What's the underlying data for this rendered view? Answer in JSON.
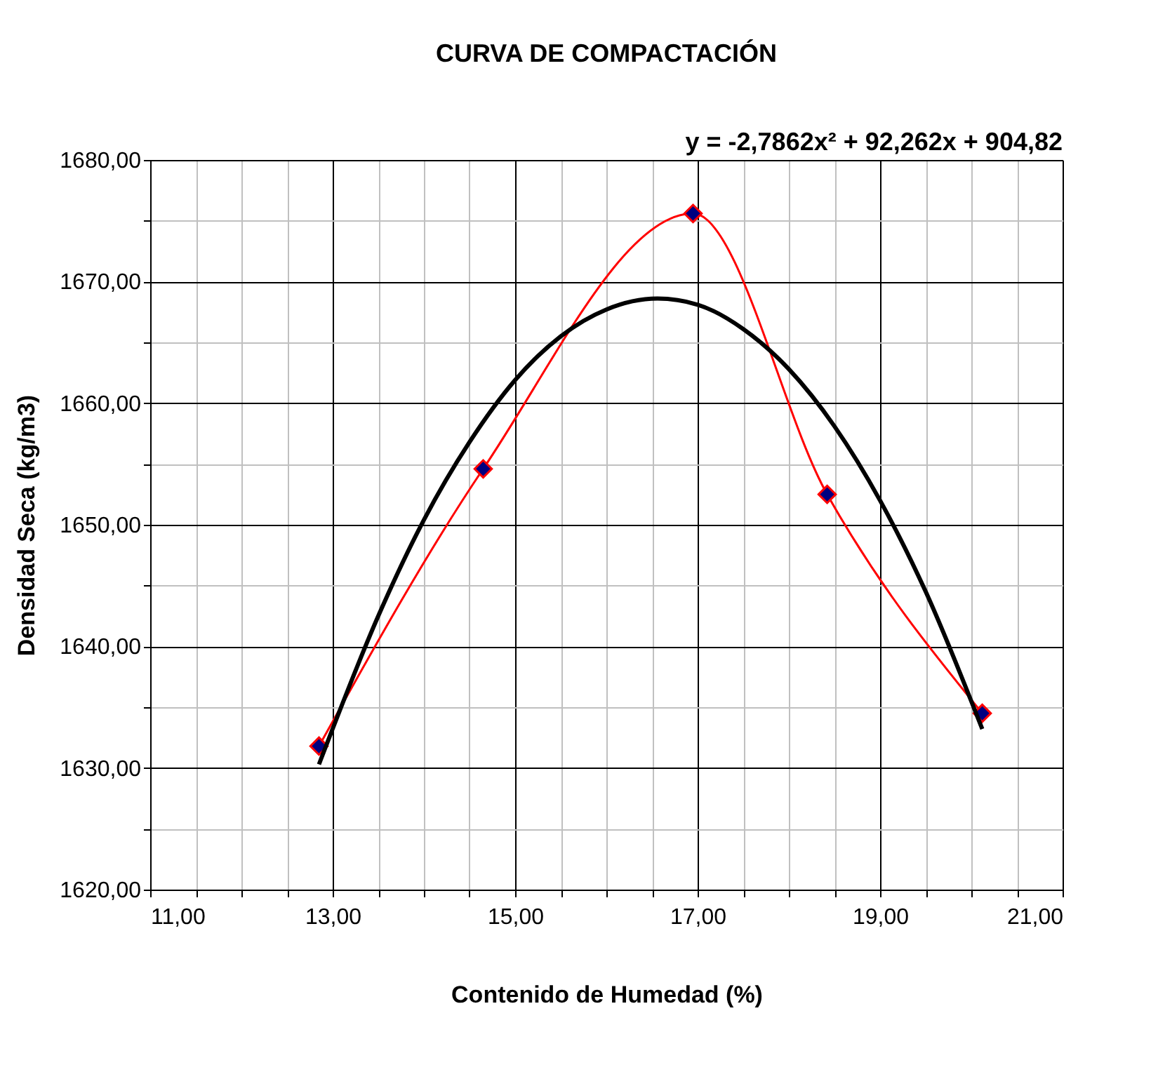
{
  "chart_data": {
    "type": "line",
    "title": "CURVA DE COMPACTACIÓN",
    "xlabel": "Contenido de Humedad (%)",
    "ylabel": "Densidad Seca (kg/m3)",
    "annotations": [
      "y = -2,7862x² + 92,262x + 904,82"
    ],
    "x": [
      12.85,
      14.65,
      16.95,
      18.42,
      20.12
    ],
    "series": [
      {
        "type": "line",
        "color": "#ff0000",
        "colors": [
          "#000080",
          "#000080",
          "#000080",
          "#000080",
          "#000080"
        ],
        "marker": "diamond",
        "values": [
          1631.8,
          1654.6,
          1675.6,
          1652.5,
          1634.5
        ]
      },
      {
        "type": "line",
        "color": "#000000",
        "marker": "none",
        "x": [
          12.85,
          13.5,
          14,
          14.5,
          15,
          15.5,
          16,
          16.56,
          17,
          17.5,
          18,
          18.5,
          19,
          19.5,
          20.12
        ],
        "values": [
          1630.3,
          1642.5,
          1650.4,
          1656.8,
          1661.9,
          1665.5,
          1667.7,
          1668.6,
          1668.1,
          1666.1,
          1662.8,
          1658.1,
          1652.0,
          1644.5,
          1633.2
        ]
      }
    ],
    "xlim": [
      11,
      21
    ],
    "xticks": [
      {
        "value": 11,
        "label": "11,00"
      },
      {
        "value": 11.5,
        "label": null
      },
      {
        "value": 12,
        "label": null
      },
      {
        "value": 12.5,
        "label": null
      },
      {
        "value": 13,
        "label": "13,00"
      },
      {
        "value": 13.5,
        "label": null
      },
      {
        "value": 14,
        "label": null
      },
      {
        "value": 14.5,
        "label": null
      },
      {
        "value": 15,
        "label": "15,00"
      },
      {
        "value": 15.5,
        "label": null
      },
      {
        "value": 16,
        "label": null
      },
      {
        "value": 16.5,
        "label": null
      },
      {
        "value": 17,
        "label": "17,00"
      },
      {
        "value": 17.5,
        "label": null
      },
      {
        "value": 18,
        "label": null
      },
      {
        "value": 18.5,
        "label": null
      },
      {
        "value": 19,
        "label": "19,00"
      },
      {
        "value": 19.5,
        "label": null
      },
      {
        "value": 20,
        "label": null
      },
      {
        "value": 20.5,
        "label": null
      },
      {
        "value": 21,
        "label": "21,00"
      }
    ],
    "ylim": [
      1620,
      1680
    ],
    "yticks": [
      {
        "value": 1620,
        "label": "1620,00"
      },
      {
        "value": 1625,
        "label": null
      },
      {
        "value": 1630,
        "label": "1630,00"
      },
      {
        "value": 1635,
        "label": null
      },
      {
        "value": 1640,
        "label": "1640,00"
      },
      {
        "value": 1645,
        "label": null
      },
      {
        "value": 1650,
        "label": "1650,00"
      },
      {
        "value": 1655,
        "label": null
      },
      {
        "value": 1660,
        "label": "1660,00"
      },
      {
        "value": 1665,
        "label": null
      },
      {
        "value": 1670,
        "label": "1670,00"
      },
      {
        "value": 1675,
        "label": null
      },
      {
        "value": 1680,
        "label": "1680,00"
      }
    ],
    "grid": true
  }
}
